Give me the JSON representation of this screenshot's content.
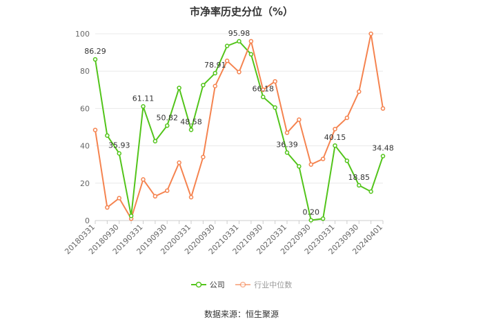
{
  "title": "市净率历史分位（%）",
  "source": "数据来源：恒生聚源",
  "colors": {
    "company": "#52c41a",
    "industry": "#f5834f",
    "grid": "#e8e8e8",
    "axis": "#cccccc",
    "text": "#666666"
  },
  "chart_data": {
    "type": "line",
    "title": "市净率历史分位（%）",
    "ylim": [
      0,
      100
    ],
    "yticks": [
      0,
      20,
      40,
      60,
      80,
      100
    ],
    "grid": true,
    "legend": "bottom-center",
    "x_tick_labels": [
      "20180331",
      "20180930",
      "20190331",
      "20190930",
      "20200331",
      "20200930",
      "20210331",
      "20210930",
      "20220331",
      "20220930",
      "20230331",
      "20230930",
      "20240401"
    ],
    "x": [
      "20180331",
      "20180630",
      "20180930",
      "20181231",
      "20190331",
      "20190630",
      "20190930",
      "20191231",
      "20200331",
      "20200630",
      "20200930",
      "20201231",
      "20210331",
      "20210630",
      "20210930",
      "20211231",
      "20220331",
      "20220630",
      "20220930",
      "20221231",
      "20230331",
      "20230630",
      "20230930",
      "20231231",
      "20240401"
    ],
    "series": [
      {
        "name": "公司",
        "color": "#52c41a",
        "values": [
          86.29,
          45.5,
          35.93,
          2.5,
          61.11,
          42.5,
          50.82,
          71.0,
          48.58,
          72.5,
          78.91,
          93.5,
          95.98,
          89.0,
          66.18,
          60.5,
          36.39,
          29.0,
          0.2,
          1.0,
          40.15,
          32.0,
          18.85,
          15.5,
          34.48
        ],
        "labels": [
          "86.29",
          "",
          "35.93",
          "",
          "61.11",
          "",
          "50.82",
          "",
          "48.58",
          "",
          "78.91",
          "",
          "95.98",
          "",
          "66.18",
          "",
          "36.39",
          "",
          "0.20",
          "",
          "40.15",
          "",
          "18.85",
          "",
          "34.48"
        ]
      },
      {
        "name": "行业中位数",
        "color": "#f5834f",
        "values": [
          48.5,
          7.0,
          12.0,
          1.0,
          22.0,
          13.0,
          16.0,
          31.0,
          12.5,
          34.0,
          72.0,
          85.5,
          79.5,
          96.0,
          70.0,
          74.5,
          47.0,
          54.0,
          30.0,
          33.0,
          49.0,
          55.0,
          69.0,
          100.0,
          60.0
        ]
      }
    ]
  }
}
